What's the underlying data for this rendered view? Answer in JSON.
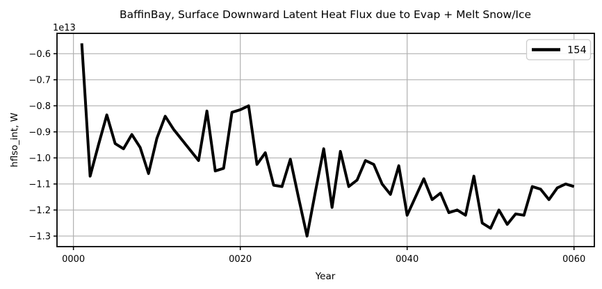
{
  "title": "BaffinBay, Surface Downward Latent Heat Flux due to Evap + Melt Snow/Ice",
  "offset_text": "1e13",
  "xlabel": "Year",
  "ylabel": "hflso_int, W",
  "legend": {
    "position": "upper right",
    "entries": [
      {
        "label": "154",
        "color": "#000000"
      }
    ]
  },
  "colors": {
    "line": "#000000",
    "grid": "#b0b0b0",
    "spine": "#000000",
    "text": "#000000",
    "legend_border": "#cccccc",
    "background": "#ffffff"
  },
  "chart_data": {
    "type": "line",
    "title": "BaffinBay, Surface Downward Latent Heat Flux due to Evap + Melt Snow/Ice",
    "xlabel": "Year",
    "ylabel": "hflso_int, W",
    "y_offset_factor": "1e13",
    "grid": true,
    "legend_position": "upper right",
    "line_color": "#000000",
    "line_width": 4,
    "xlim": [
      -1.97,
      62.44
    ],
    "ylim": [
      -1.3405,
      -0.5218
    ],
    "xticks": {
      "positions": [
        0,
        20,
        40,
        60
      ],
      "labels": [
        "0000",
        "0020",
        "0040",
        "0060"
      ]
    },
    "yticks": [
      -0.6,
      -0.7,
      -0.8,
      -0.9,
      -1.0,
      -1.1,
      -1.2,
      -1.3
    ],
    "series": [
      {
        "name": "154",
        "start_year": 1,
        "x_step": 1,
        "values_1e13": [
          -0.56,
          -1.07,
          -0.95,
          -0.835,
          -0.945,
          -0.965,
          -0.91,
          -0.96,
          -1.06,
          -0.925,
          -0.84,
          -0.89,
          -0.93,
          -0.97,
          -1.01,
          -0.82,
          -1.05,
          -1.04,
          -0.825,
          -0.815,
          -0.8,
          -1.025,
          -0.98,
          -1.105,
          -1.11,
          -1.005,
          -1.155,
          -1.3,
          -1.13,
          -0.965,
          -1.19,
          -0.975,
          -1.11,
          -1.085,
          -1.01,
          -1.025,
          -1.1,
          -1.14,
          -1.03,
          -1.22,
          -1.15,
          -1.08,
          -1.16,
          -1.135,
          -1.21,
          -1.2,
          -1.22,
          -1.07,
          -1.25,
          -1.27,
          -1.2,
          -1.255,
          -1.215,
          -1.22,
          -1.11,
          -1.12,
          -1.16,
          -1.115,
          -1.1,
          -1.11
        ]
      }
    ]
  }
}
